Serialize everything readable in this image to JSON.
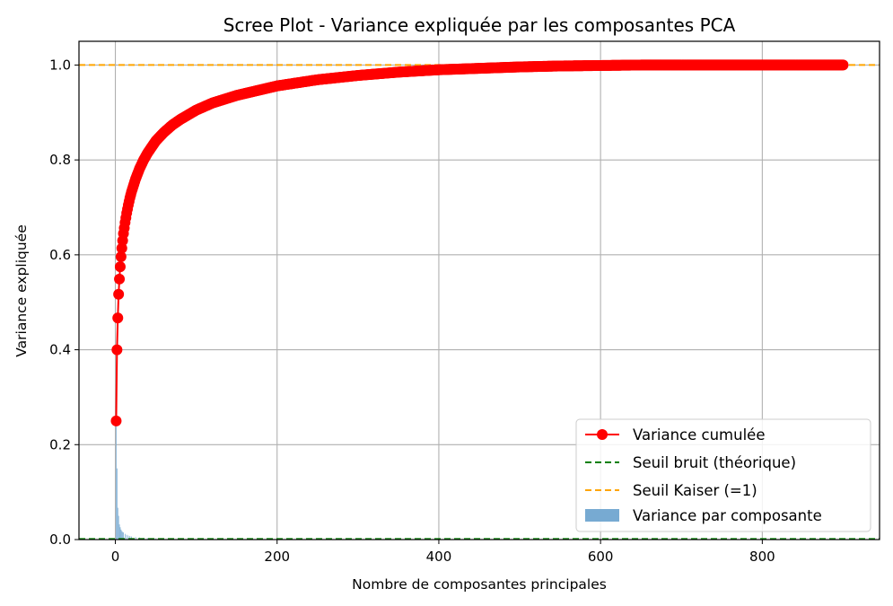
{
  "chart_data": {
    "type": "line",
    "title": "Scree Plot - Variance expliquée par les composantes PCA",
    "xlabel": "Nombre de composantes principales",
    "ylabel": "Variance expliquée",
    "xlim": [
      -45,
      945
    ],
    "ylim": [
      0,
      1.05
    ],
    "x_ticks": [
      0,
      200,
      400,
      600,
      800
    ],
    "y_ticks": [
      0.0,
      0.2,
      0.4,
      0.6,
      0.8,
      1.0
    ],
    "x_tick_labels": [
      "0",
      "200",
      "400",
      "600",
      "800"
    ],
    "y_tick_labels": [
      "0.0",
      "0.2",
      "0.4",
      "0.6",
      "0.8",
      "1.0"
    ],
    "grid": true,
    "legend_position": "lower-right",
    "n_components": 900,
    "series": [
      {
        "name": "Variance cumulée",
        "kind": "line-marker",
        "color": "#ff0000",
        "x": [
          1,
          2,
          3,
          4,
          5,
          6,
          7,
          8,
          9,
          10,
          12,
          14,
          16,
          18,
          20,
          25,
          30,
          35,
          40,
          50,
          60,
          70,
          80,
          100,
          120,
          150,
          200,
          250,
          300,
          350,
          400,
          450,
          500,
          550,
          600,
          650,
          700,
          750,
          800,
          850,
          900
        ],
        "values": [
          0.25,
          0.4,
          0.467,
          0.517,
          0.549,
          0.575,
          0.596,
          0.614,
          0.63,
          0.645,
          0.668,
          0.688,
          0.705,
          0.72,
          0.733,
          0.76,
          0.782,
          0.8,
          0.815,
          0.84,
          0.858,
          0.873,
          0.885,
          0.905,
          0.92,
          0.936,
          0.956,
          0.969,
          0.978,
          0.985,
          0.99,
          0.993,
          0.996,
          0.998,
          0.999,
          1.0,
          1.0,
          1.0,
          1.0,
          1.0,
          1.0
        ]
      },
      {
        "name": "Seuil bruit (théorique)",
        "kind": "hline",
        "color": "#008000",
        "value": 0.0011
      },
      {
        "name": "Seuil Kaiser (=1)",
        "kind": "hline",
        "color": "#ffa500",
        "value": 1.0
      },
      {
        "name": "Variance par composante",
        "kind": "bar",
        "color": "#77aad2",
        "x": [
          1,
          2,
          3,
          4,
          5,
          6,
          7,
          8,
          9,
          10,
          12,
          14,
          16,
          18,
          20,
          25,
          30,
          35,
          40,
          50
        ],
        "values": [
          0.25,
          0.15,
          0.067,
          0.05,
          0.032,
          0.026,
          0.021,
          0.018,
          0.016,
          0.015,
          0.012,
          0.01,
          0.0085,
          0.0075,
          0.0065,
          0.0054,
          0.0044,
          0.0036,
          0.003,
          0.0025
        ]
      }
    ]
  }
}
